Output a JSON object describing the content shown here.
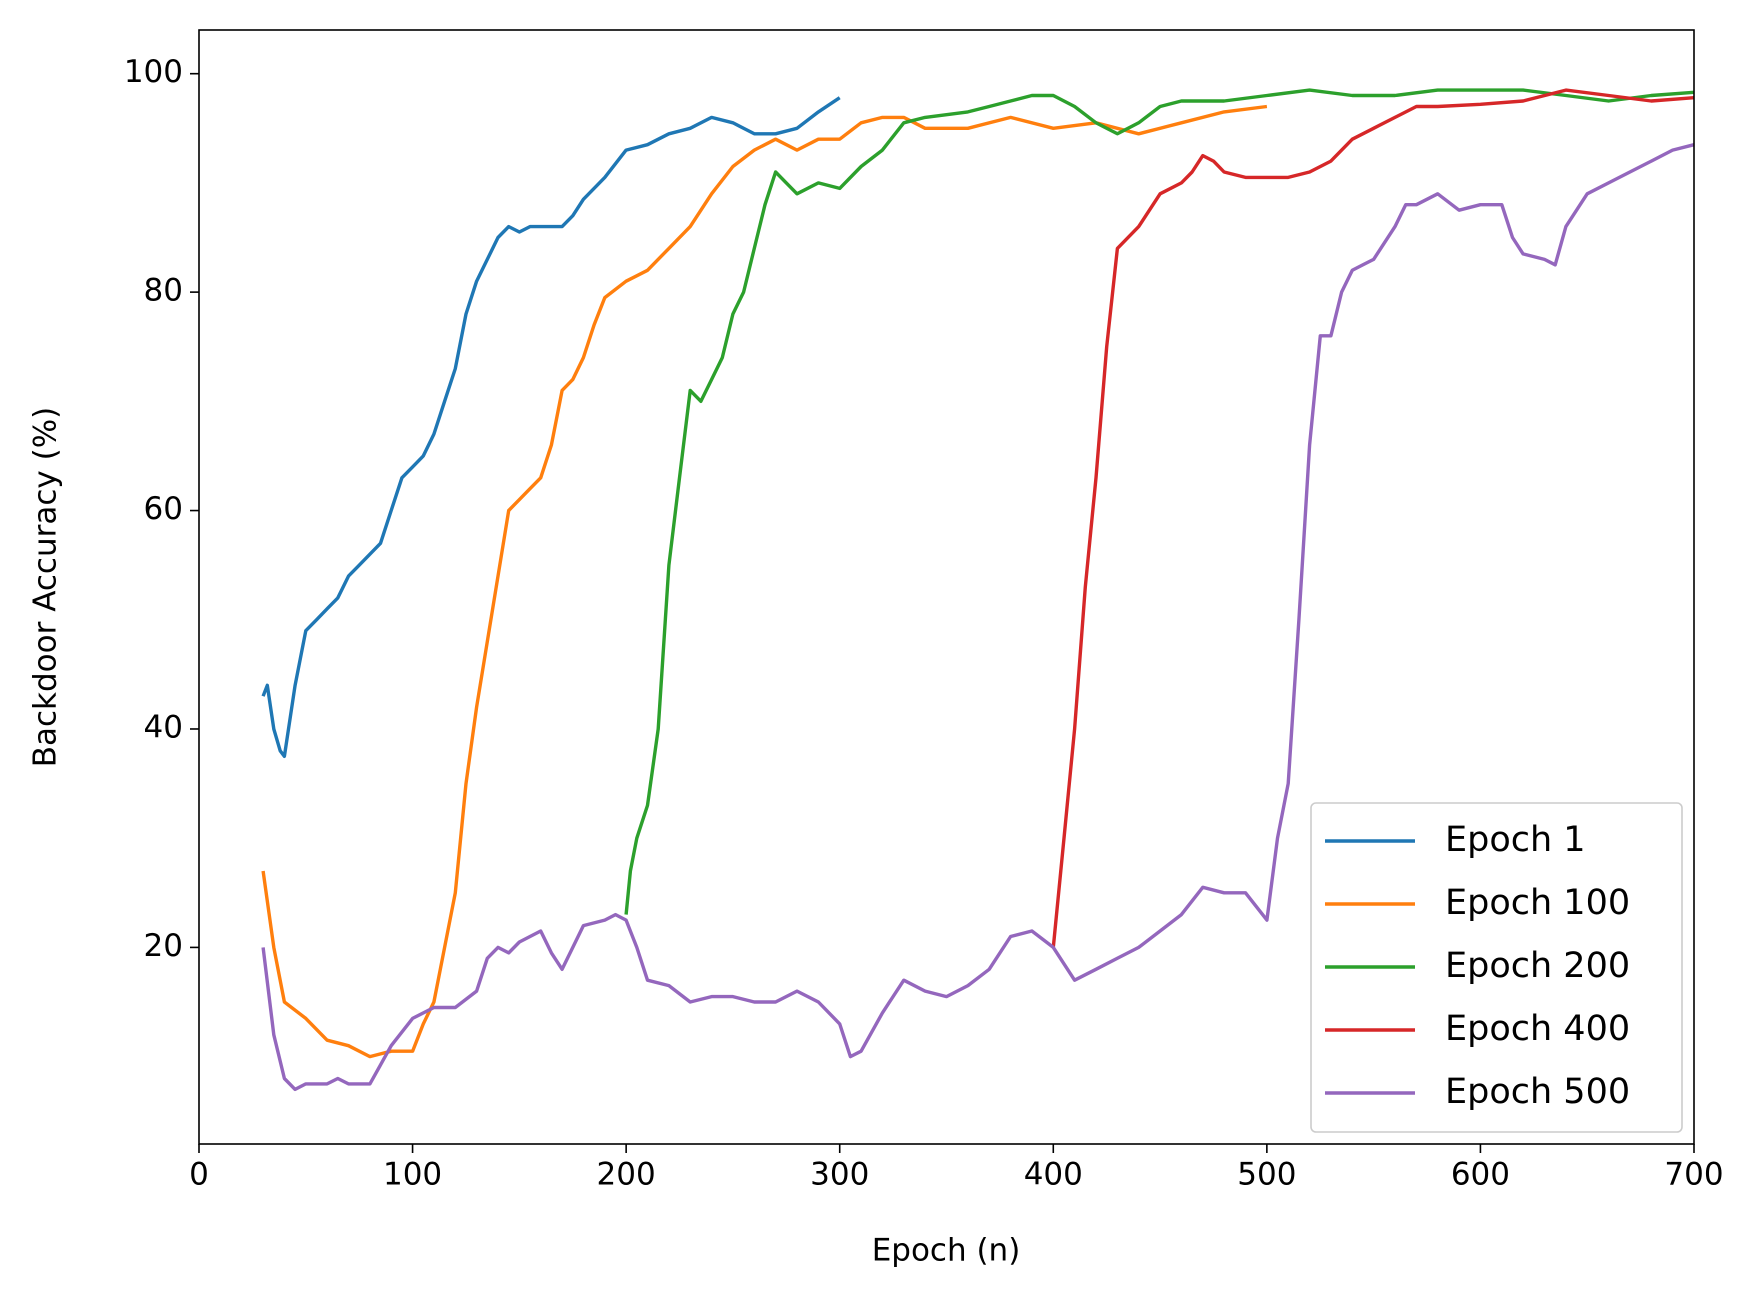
{
  "chart_data": {
    "type": "line",
    "x_label": "Epoch (n)",
    "y_label": "Backdoor Accuracy (%)",
    "xlim": [
      0,
      700
    ],
    "ylim": [
      2,
      104
    ],
    "xticks": [
      0,
      100,
      200,
      300,
      400,
      500,
      600,
      700
    ],
    "yticks": [
      20,
      40,
      60,
      80,
      100
    ],
    "legend": "lower right",
    "grid": false,
    "series": [
      {
        "name": "Epoch 1",
        "color": "#1f77b4",
        "x": [
          30,
          32,
          35,
          38,
          40,
          45,
          50,
          55,
          60,
          65,
          70,
          75,
          80,
          85,
          90,
          95,
          100,
          105,
          110,
          115,
          120,
          125,
          130,
          135,
          140,
          145,
          150,
          155,
          160,
          170,
          175,
          180,
          190,
          200,
          210,
          220,
          230,
          240,
          250,
          260,
          270,
          280,
          290,
          300
        ],
        "values": [
          43,
          44,
          40,
          38,
          37.5,
          44,
          49,
          50,
          51,
          52,
          54,
          55,
          56,
          57,
          60,
          63,
          64,
          65,
          67,
          70,
          73,
          78,
          81,
          83,
          85,
          86,
          85.5,
          86,
          86,
          86,
          87,
          88.5,
          90.5,
          93,
          93.5,
          94.5,
          95,
          96,
          95.5,
          94.5,
          94.5,
          95,
          96.5,
          97.8
        ]
      },
      {
        "name": "Epoch 100",
        "color": "#ff7f0e",
        "x": [
          30,
          35,
          40,
          50,
          60,
          70,
          80,
          90,
          100,
          105,
          110,
          115,
          120,
          125,
          130,
          135,
          140,
          145,
          150,
          155,
          160,
          165,
          170,
          175,
          180,
          185,
          190,
          200,
          210,
          220,
          230,
          240,
          250,
          260,
          270,
          280,
          290,
          300,
          310,
          320,
          330,
          340,
          360,
          380,
          400,
          420,
          440,
          460,
          480,
          500
        ],
        "values": [
          27,
          20,
          15,
          13.5,
          11.5,
          11,
          10,
          10.5,
          10.5,
          13,
          15,
          20,
          25,
          35,
          42,
          48,
          54,
          60,
          61,
          62,
          63,
          66,
          71,
          72,
          74,
          77,
          79.5,
          81,
          82,
          84,
          86,
          89,
          91.5,
          93,
          94,
          93,
          94,
          94,
          95.5,
          96,
          96,
          95,
          95,
          96,
          95,
          95.5,
          94.5,
          95.5,
          96.5,
          97
        ]
      },
      {
        "name": "Epoch 200",
        "color": "#2ca02c",
        "x": [
          200,
          202,
          205,
          210,
          215,
          220,
          225,
          230,
          235,
          240,
          245,
          250,
          255,
          260,
          265,
          270,
          275,
          280,
          290,
          300,
          310,
          320,
          330,
          340,
          360,
          370,
          380,
          390,
          400,
          410,
          420,
          430,
          440,
          450,
          460,
          480,
          500,
          520,
          540,
          560,
          580,
          600,
          620,
          640,
          660,
          680,
          700
        ],
        "values": [
          23,
          27,
          30,
          33,
          40,
          55,
          63,
          71,
          70,
          72,
          74,
          78,
          80,
          84,
          88,
          91,
          90,
          89,
          90,
          89.5,
          91.5,
          93,
          95.5,
          96,
          96.5,
          97,
          97.5,
          98,
          98,
          97,
          95.5,
          94.5,
          95.5,
          97,
          97.5,
          97.5,
          98,
          98.5,
          98,
          98,
          98.5,
          98.5,
          98.5,
          98,
          97.5,
          98,
          98.3
        ]
      },
      {
        "name": "Epoch 400",
        "color": "#d62728",
        "x": [
          400,
          405,
          410,
          415,
          420,
          425,
          430,
          440,
          450,
          460,
          465,
          470,
          475,
          480,
          490,
          500,
          510,
          520,
          530,
          540,
          550,
          560,
          570,
          580,
          600,
          620,
          640,
          660,
          680,
          700
        ],
        "values": [
          20,
          30,
          40,
          53,
          63,
          75,
          84,
          86,
          89,
          90,
          91,
          92.5,
          92,
          91,
          90.5,
          90.5,
          90.5,
          91,
          92,
          94,
          95,
          96,
          97,
          97,
          97.2,
          97.5,
          98.5,
          98,
          97.5,
          97.8
        ]
      },
      {
        "name": "Epoch 500",
        "color": "#9467bd",
        "x": [
          30,
          35,
          40,
          45,
          50,
          60,
          65,
          70,
          80,
          90,
          100,
          110,
          120,
          130,
          135,
          140,
          145,
          150,
          160,
          165,
          170,
          175,
          180,
          190,
          195,
          200,
          205,
          210,
          220,
          230,
          240,
          250,
          260,
          270,
          280,
          290,
          300,
          305,
          310,
          320,
          330,
          340,
          350,
          360,
          370,
          380,
          390,
          400,
          410,
          420,
          430,
          440,
          450,
          460,
          470,
          480,
          490,
          500,
          505,
          510,
          515,
          520,
          525,
          530,
          535,
          540,
          545,
          550,
          560,
          565,
          570,
          580,
          590,
          600,
          610,
          615,
          620,
          630,
          635,
          640,
          650,
          660,
          670,
          680,
          690,
          700
        ],
        "values": [
          20,
          12,
          8,
          7,
          7.5,
          7.5,
          8,
          7.5,
          7.5,
          11,
          13.5,
          14.5,
          14.5,
          16,
          19,
          20,
          19.5,
          20.5,
          21.5,
          19.5,
          18,
          20,
          22,
          22.5,
          23,
          22.5,
          20,
          17,
          16.5,
          15,
          15.5,
          15.5,
          15,
          15,
          16,
          15,
          13,
          10,
          10.5,
          14,
          17,
          16,
          15.5,
          16.5,
          18,
          21,
          21.5,
          20,
          17,
          18,
          19,
          20,
          21.5,
          23,
          25.5,
          25,
          25,
          22.5,
          30,
          35,
          50,
          66,
          76,
          76,
          80,
          82,
          82.5,
          83,
          86,
          88,
          88,
          89,
          87.5,
          88,
          88,
          85,
          83.5,
          83,
          82.5,
          86,
          89,
          90,
          91,
          92,
          93,
          93.5
        ]
      }
    ]
  }
}
